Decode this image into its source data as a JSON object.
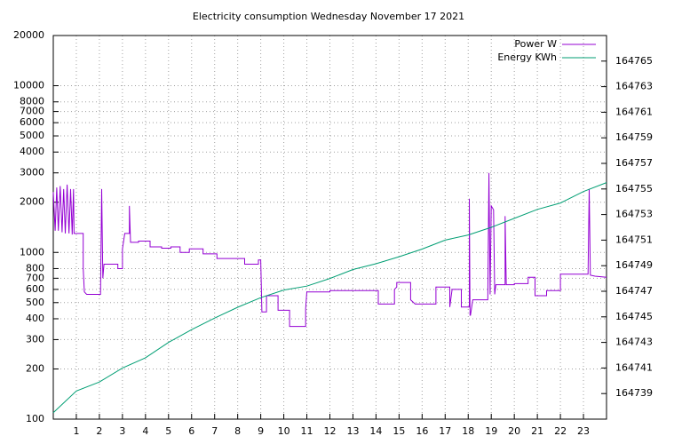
{
  "chart_data": {
    "type": "line",
    "title": "Electricity consumption Wednesday November 17 2021",
    "log_y": true,
    "grid": true,
    "legend": "top-right",
    "xlim": [
      0,
      24
    ],
    "xticks": [
      1,
      2,
      3,
      4,
      5,
      6,
      7,
      8,
      9,
      10,
      11,
      12,
      13,
      14,
      15,
      16,
      17,
      18,
      19,
      20,
      21,
      22,
      23
    ],
    "ylim": [
      100,
      20000
    ],
    "yticks": [
      100,
      200,
      300,
      400,
      500,
      600,
      700,
      800,
      1000,
      2000,
      3000,
      4000,
      5000,
      6000,
      7000,
      8000,
      10000,
      20000
    ],
    "y2lim": [
      164737,
      164767
    ],
    "y2ticks": [
      164739,
      164741,
      164743,
      164745,
      164747,
      164749,
      164751,
      164753,
      164755,
      164757,
      164759,
      164761,
      164763,
      164765
    ],
    "series": [
      {
        "name": "Power W",
        "color": "#9400d3",
        "x": [
          0,
          0.08,
          0.15,
          0.22,
          0.3,
          0.38,
          0.45,
          0.52,
          0.6,
          0.68,
          0.75,
          0.82,
          0.88,
          0.9,
          1.3,
          1.3,
          1.35,
          1.45,
          2.05,
          2.1,
          2.15,
          2.2,
          2.8,
          2.8,
          3.0,
          3.0,
          3.1,
          3.3,
          3.3,
          3.35,
          3.7,
          3.7,
          4.2,
          4.2,
          4.7,
          4.7,
          5.1,
          5.1,
          5.5,
          5.5,
          5.9,
          5.9,
          6.5,
          6.5,
          7.1,
          7.1,
          8.3,
          8.3,
          8.9,
          8.9,
          9.0,
          9.05,
          9.25,
          9.25,
          9.75,
          9.75,
          10.25,
          10.25,
          10.95,
          10.95,
          11.0,
          12.0,
          12.0,
          14.1,
          14.1,
          14.8,
          14.8,
          14.9,
          14.9,
          15.5,
          15.5,
          15.7,
          16.6,
          16.6,
          17.2,
          17.2,
          17.3,
          17.7,
          17.7,
          18.05,
          18.05,
          18.08,
          18.1,
          18.2,
          18.85,
          18.9,
          18.95,
          19.0,
          19.1,
          19.15,
          19.2,
          19.6,
          19.6,
          19.65,
          20.0,
          20.0,
          20.6,
          20.6,
          20.9,
          20.9,
          21.4,
          21.4,
          22.0,
          22.0,
          23.2,
          23.25,
          23.3,
          23.5,
          24
        ],
        "values": [
          2300,
          1350,
          2450,
          1350,
          2500,
          1320,
          2400,
          1300,
          2550,
          1300,
          2400,
          1280,
          2400,
          1300,
          1300,
          800,
          580,
          560,
          560,
          2400,
          700,
          850,
          850,
          800,
          800,
          1050,
          1300,
          1300,
          1900,
          1150,
          1150,
          1170,
          1170,
          1080,
          1080,
          1060,
          1060,
          1080,
          1080,
          1000,
          1000,
          1050,
          1050,
          980,
          980,
          920,
          920,
          850,
          850,
          900,
          900,
          440,
          440,
          550,
          550,
          450,
          450,
          360,
          360,
          460,
          580,
          580,
          590,
          590,
          490,
          490,
          600,
          620,
          660,
          660,
          520,
          490,
          490,
          620,
          620,
          470,
          600,
          600,
          470,
          470,
          2100,
          420,
          420,
          520,
          520,
          3000,
          560,
          1900,
          1800,
          560,
          640,
          640,
          1650,
          640,
          640,
          650,
          650,
          710,
          710,
          550,
          550,
          590,
          590,
          740,
          740,
          2400,
          730,
          720,
          710
        ]
      },
      {
        "name": "Energy KWh",
        "color": "#009e73",
        "axis": "y2",
        "x": [
          0,
          1,
          2,
          3,
          4,
          5,
          6,
          7,
          8,
          9,
          10,
          11,
          12,
          13,
          14,
          15,
          16,
          17,
          18,
          19,
          20,
          21,
          22,
          23,
          24
        ],
        "values": [
          164737.5,
          164739.2,
          164739.9,
          164741,
          164741.8,
          164743,
          164744,
          164744.9,
          164745.75,
          164746.5,
          164747.1,
          164747.4,
          164748,
          164748.7,
          164749.15,
          164749.7,
          164750.3,
          164751,
          164751.4,
          164752,
          164752.7,
          164753.4,
          164753.9,
          164754.8,
          164755.5
        ]
      }
    ]
  }
}
